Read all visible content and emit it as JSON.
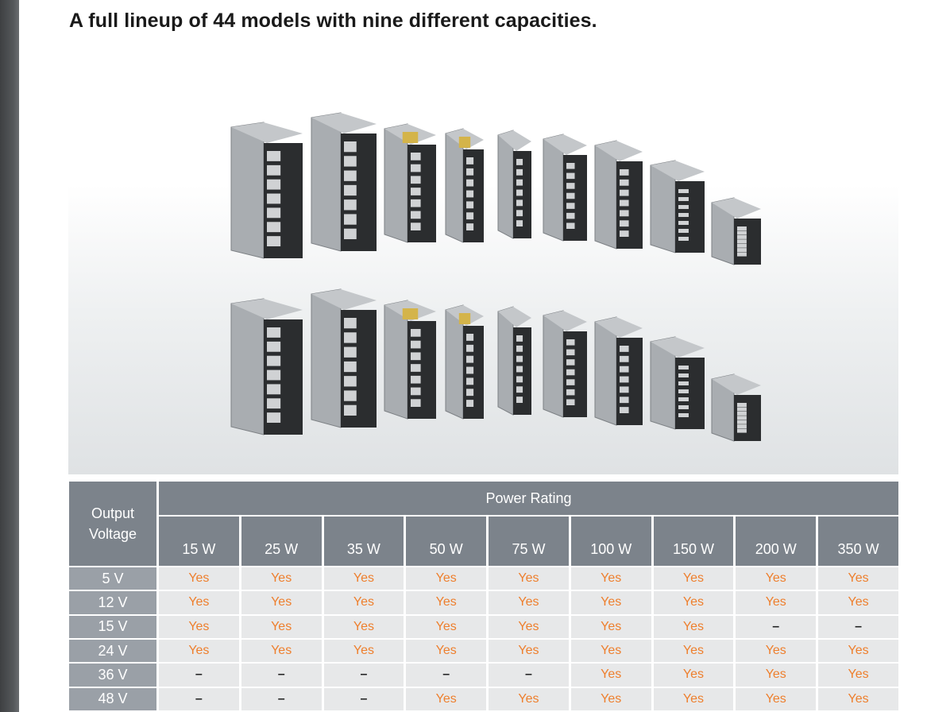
{
  "title": "A full lineup of 44 models with nine different capacities.",
  "photo": {
    "alt": "Power supply units in nine capacities, two rows"
  },
  "table": {
    "corner_label": "Output Voltage",
    "group_header": "Power Rating",
    "columns": [
      "15 W",
      "25 W",
      "35 W",
      "50 W",
      "75 W",
      "100 W",
      "150 W",
      "200 W",
      "350 W"
    ],
    "rows": [
      {
        "voltage": "5 V",
        "cells": [
          "Yes",
          "Yes",
          "Yes",
          "Yes",
          "Yes",
          "Yes",
          "Yes",
          "Yes",
          "Yes"
        ]
      },
      {
        "voltage": "12 V",
        "cells": [
          "Yes",
          "Yes",
          "Yes",
          "Yes",
          "Yes",
          "Yes",
          "Yes",
          "Yes",
          "Yes"
        ]
      },
      {
        "voltage": "15 V",
        "cells": [
          "Yes",
          "Yes",
          "Yes",
          "Yes",
          "Yes",
          "Yes",
          "Yes",
          "–",
          "–"
        ]
      },
      {
        "voltage": "24 V",
        "cells": [
          "Yes",
          "Yes",
          "Yes",
          "Yes",
          "Yes",
          "Yes",
          "Yes",
          "Yes",
          "Yes"
        ]
      },
      {
        "voltage": "36 V",
        "cells": [
          "–",
          "–",
          "–",
          "–",
          "–",
          "Yes",
          "Yes",
          "Yes",
          "Yes"
        ]
      },
      {
        "voltage": "48 V",
        "cells": [
          "–",
          "–",
          "–",
          "Yes",
          "Yes",
          "Yes",
          "Yes",
          "Yes",
          "Yes"
        ]
      }
    ],
    "colors": {
      "yes": "#ee7f2d",
      "header_bg": "#7c838b",
      "row_head_bg": "#9aa0a7",
      "cell_bg": "#e7e8e9"
    }
  }
}
